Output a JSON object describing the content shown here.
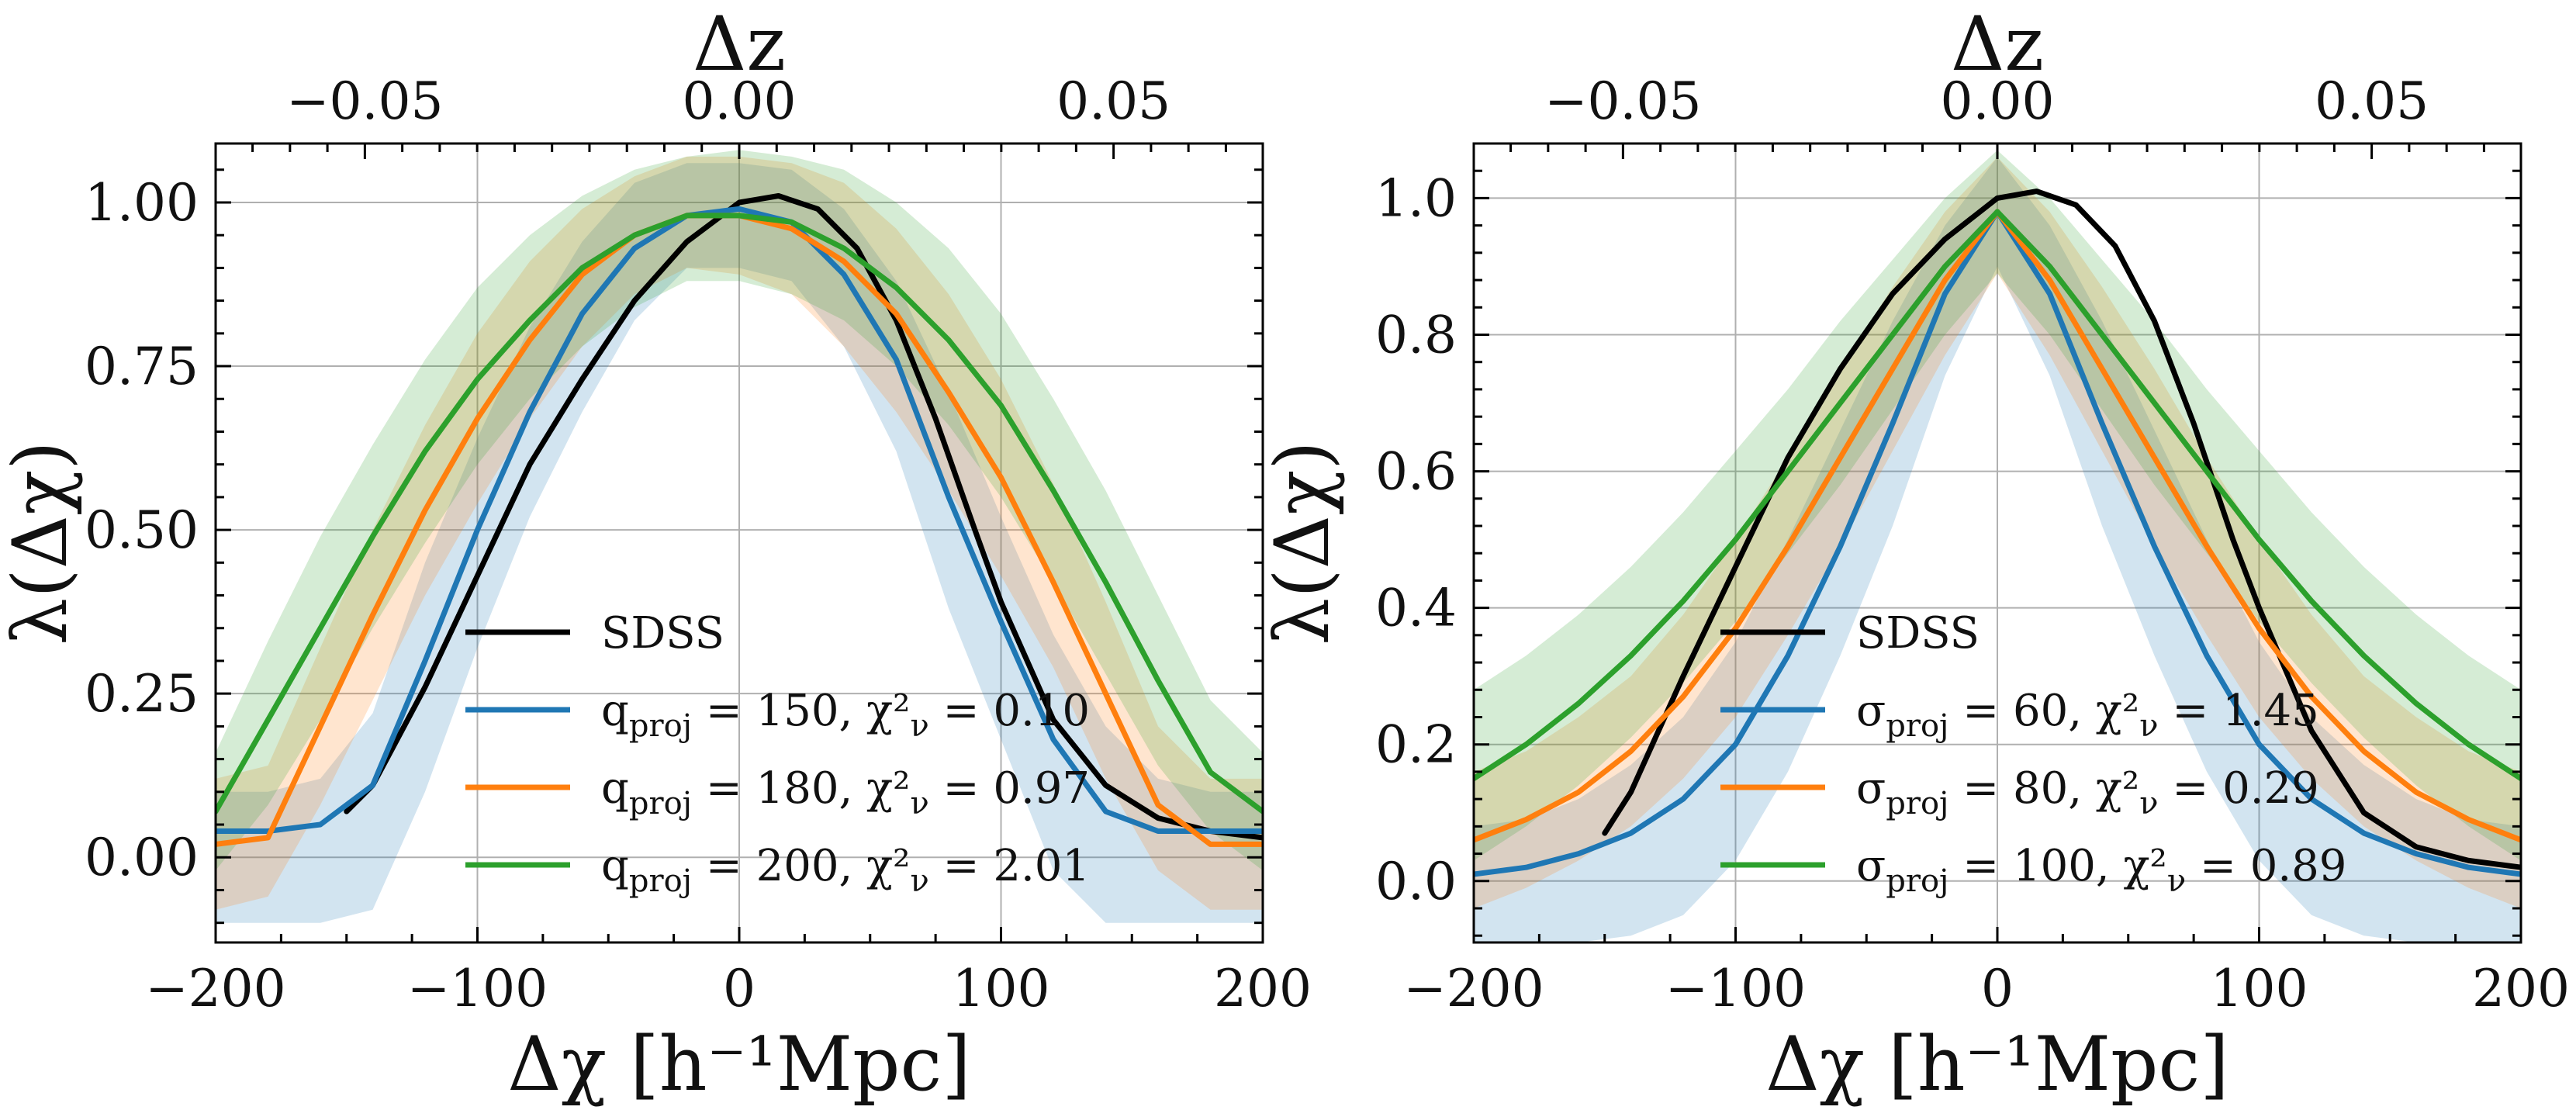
{
  "chart_data": [
    {
      "type": "line",
      "panel": "left",
      "xlabel": "Δχ [h⁻¹Mpc]",
      "ylabel": "λ(Δχ)",
      "top_xlabel": "Δz",
      "xlim": [
        -200,
        200
      ],
      "ylim": [
        -0.13,
        1.09
      ],
      "xticks": [
        -200,
        -100,
        0,
        100,
        200
      ],
      "xtick_labels": [
        "−200",
        "−100",
        "0",
        "100",
        "200"
      ],
      "yticks": [
        0.0,
        0.25,
        0.5,
        0.75,
        1.0
      ],
      "ytick_labels": [
        "0.00",
        "0.25",
        "0.50",
        "0.75",
        "1.00"
      ],
      "top_ticks_x": [
        -143,
        0,
        143
      ],
      "top_tick_labels": [
        "−0.05",
        "0.00",
        "0.05"
      ],
      "grid": true,
      "legend_position": "lower-center",
      "x": [
        -200,
        -180,
        -160,
        -140,
        -120,
        -100,
        -80,
        -60,
        -40,
        -20,
        0,
        20,
        40,
        60,
        80,
        100,
        120,
        140,
        160,
        180,
        200
      ],
      "series": [
        {
          "name": "SDSS",
          "legend_label": "SDSS",
          "color": "#000000",
          "x": [
            -150,
            -140,
            -120,
            -100,
            -80,
            -60,
            -40,
            -20,
            0,
            15,
            30,
            45,
            60,
            75,
            90,
            100,
            120,
            140,
            160,
            180,
            200
          ],
          "values": [
            0.07,
            0.11,
            0.26,
            0.43,
            0.6,
            0.73,
            0.85,
            0.94,
            1.0,
            1.01,
            0.99,
            0.93,
            0.82,
            0.67,
            0.5,
            0.39,
            0.21,
            0.11,
            0.06,
            0.04,
            0.03
          ]
        },
        {
          "name": "q_proj=150",
          "legend_label": "q_proj = 150, χ²_ν = 0.10",
          "color": "#1f77b4",
          "values": [
            0.04,
            0.04,
            0.05,
            0.11,
            0.3,
            0.5,
            0.68,
            0.83,
            0.93,
            0.98,
            0.99,
            0.97,
            0.89,
            0.76,
            0.55,
            0.36,
            0.18,
            0.07,
            0.04,
            0.04,
            0.04
          ],
          "band_lower": [
            -0.1,
            -0.1,
            -0.1,
            -0.08,
            0.1,
            0.32,
            0.52,
            0.68,
            0.82,
            0.9,
            0.9,
            0.88,
            0.78,
            0.62,
            0.38,
            0.18,
            -0.02,
            -0.1,
            -0.1,
            -0.1,
            -0.1
          ],
          "band_upper": [
            0.1,
            0.1,
            0.12,
            0.22,
            0.45,
            0.64,
            0.81,
            0.94,
            1.03,
            1.06,
            1.06,
            1.05,
            0.99,
            0.88,
            0.71,
            0.52,
            0.34,
            0.2,
            0.12,
            0.1,
            0.1
          ]
        },
        {
          "name": "q_proj=180",
          "legend_label": "q_proj = 180, χ²_ν = 0.97",
          "color": "#ff7f0e",
          "values": [
            0.02,
            0.03,
            0.2,
            0.37,
            0.53,
            0.67,
            0.79,
            0.89,
            0.95,
            0.98,
            0.98,
            0.96,
            0.91,
            0.83,
            0.71,
            0.58,
            0.42,
            0.25,
            0.08,
            0.02,
            0.02
          ],
          "band_lower": [
            -0.08,
            -0.06,
            0.08,
            0.24,
            0.4,
            0.54,
            0.67,
            0.78,
            0.86,
            0.9,
            0.89,
            0.86,
            0.78,
            0.68,
            0.56,
            0.43,
            0.29,
            0.12,
            -0.02,
            -0.08,
            -0.08
          ],
          "band_upper": [
            0.12,
            0.14,
            0.32,
            0.5,
            0.66,
            0.8,
            0.91,
            0.99,
            1.04,
            1.07,
            1.07,
            1.06,
            1.03,
            0.96,
            0.86,
            0.73,
            0.57,
            0.39,
            0.2,
            0.12,
            0.12
          ]
        },
        {
          "name": "q_proj=200",
          "legend_label": "q_proj = 200, χ²_ν = 2.01",
          "color": "#2ca02c",
          "values": [
            0.07,
            0.21,
            0.35,
            0.49,
            0.62,
            0.73,
            0.82,
            0.9,
            0.95,
            0.98,
            0.98,
            0.97,
            0.93,
            0.87,
            0.79,
            0.69,
            0.56,
            0.42,
            0.27,
            0.13,
            0.07
          ],
          "band_lower": [
            -0.02,
            0.08,
            0.21,
            0.35,
            0.48,
            0.6,
            0.7,
            0.78,
            0.84,
            0.88,
            0.88,
            0.86,
            0.82,
            0.75,
            0.66,
            0.55,
            0.42,
            0.28,
            0.14,
            0.04,
            -0.02
          ],
          "band_upper": [
            0.16,
            0.33,
            0.49,
            0.63,
            0.76,
            0.87,
            0.95,
            1.01,
            1.05,
            1.07,
            1.08,
            1.07,
            1.05,
            1.0,
            0.93,
            0.83,
            0.7,
            0.56,
            0.4,
            0.24,
            0.16
          ]
        }
      ]
    },
    {
      "type": "line",
      "panel": "right",
      "xlabel": "Δχ [h⁻¹Mpc]",
      "ylabel": "λ(Δχ)",
      "top_xlabel": "Δz",
      "xlim": [
        -200,
        200
      ],
      "ylim": [
        -0.09,
        1.08
      ],
      "xticks": [
        -200,
        -100,
        0,
        100,
        200
      ],
      "xtick_labels": [
        "−200",
        "−100",
        "0",
        "100",
        "200"
      ],
      "yticks": [
        0.0,
        0.2,
        0.4,
        0.6,
        0.8,
        1.0
      ],
      "ytick_labels": [
        "0.0",
        "0.2",
        "0.4",
        "0.6",
        "0.8",
        "1.0"
      ],
      "top_ticks_x": [
        -143,
        0,
        143
      ],
      "top_tick_labels": [
        "−0.05",
        "0.00",
        "0.05"
      ],
      "grid": true,
      "legend_position": "lower-center",
      "x": [
        -200,
        -180,
        -160,
        -140,
        -120,
        -100,
        -80,
        -60,
        -40,
        -20,
        0,
        20,
        40,
        60,
        80,
        100,
        120,
        140,
        160,
        180,
        200
      ],
      "series": [
        {
          "name": "SDSS",
          "legend_label": "SDSS",
          "color": "#000000",
          "x": [
            -150,
            -140,
            -120,
            -100,
            -80,
            -60,
            -40,
            -20,
            0,
            15,
            30,
            45,
            60,
            75,
            90,
            100,
            120,
            140,
            160,
            180,
            200
          ],
          "values": [
            0.07,
            0.13,
            0.3,
            0.46,
            0.62,
            0.75,
            0.86,
            0.94,
            1.0,
            1.01,
            0.99,
            0.93,
            0.82,
            0.67,
            0.5,
            0.4,
            0.22,
            0.1,
            0.05,
            0.03,
            0.02
          ]
        },
        {
          "name": "sigma_proj=60",
          "legend_label": "σ_proj = 60, χ²_ν = 1.45",
          "color": "#1f77b4",
          "values": [
            0.01,
            0.02,
            0.04,
            0.07,
            0.12,
            0.2,
            0.33,
            0.49,
            0.67,
            0.86,
            0.98,
            0.86,
            0.67,
            0.49,
            0.33,
            0.2,
            0.12,
            0.07,
            0.04,
            0.02,
            0.01
          ],
          "band_lower": [
            -0.09,
            -0.09,
            -0.09,
            -0.08,
            -0.05,
            0.03,
            0.16,
            0.33,
            0.52,
            0.74,
            0.9,
            0.74,
            0.52,
            0.33,
            0.16,
            0.03,
            -0.05,
            -0.08,
            -0.09,
            -0.09,
            -0.09
          ],
          "band_upper": [
            0.08,
            0.09,
            0.12,
            0.17,
            0.24,
            0.35,
            0.5,
            0.66,
            0.82,
            0.96,
            1.06,
            0.96,
            0.82,
            0.66,
            0.5,
            0.35,
            0.24,
            0.17,
            0.12,
            0.09,
            0.08
          ]
        },
        {
          "name": "sigma_proj=80",
          "legend_label": "σ_proj = 80, χ²_ν = 0.29",
          "color": "#ff7f0e",
          "values": [
            0.06,
            0.09,
            0.13,
            0.19,
            0.27,
            0.37,
            0.49,
            0.62,
            0.75,
            0.88,
            0.98,
            0.88,
            0.75,
            0.62,
            0.49,
            0.37,
            0.27,
            0.19,
            0.13,
            0.09,
            0.06
          ],
          "band_lower": [
            -0.04,
            -0.01,
            0.03,
            0.08,
            0.15,
            0.24,
            0.36,
            0.49,
            0.63,
            0.77,
            0.89,
            0.77,
            0.63,
            0.49,
            0.36,
            0.24,
            0.15,
            0.08,
            0.03,
            -0.01,
            -0.04
          ],
          "band_upper": [
            0.16,
            0.19,
            0.24,
            0.3,
            0.39,
            0.5,
            0.62,
            0.75,
            0.87,
            0.98,
            1.06,
            0.98,
            0.87,
            0.75,
            0.62,
            0.5,
            0.39,
            0.3,
            0.24,
            0.19,
            0.16
          ]
        },
        {
          "name": "sigma_proj=100",
          "legend_label": "σ_proj = 100, χ²_ν = 0.89",
          "color": "#2ca02c",
          "values": [
            0.15,
            0.2,
            0.26,
            0.33,
            0.41,
            0.5,
            0.6,
            0.7,
            0.8,
            0.9,
            0.98,
            0.9,
            0.8,
            0.7,
            0.6,
            0.5,
            0.41,
            0.33,
            0.26,
            0.2,
            0.15
          ],
          "band_lower": [
            0.03,
            0.08,
            0.14,
            0.21,
            0.29,
            0.38,
            0.48,
            0.58,
            0.69,
            0.8,
            0.89,
            0.8,
            0.69,
            0.58,
            0.48,
            0.38,
            0.29,
            0.21,
            0.14,
            0.08,
            0.03
          ],
          "band_upper": [
            0.28,
            0.33,
            0.39,
            0.46,
            0.54,
            0.63,
            0.72,
            0.82,
            0.91,
            1.0,
            1.07,
            1.0,
            0.91,
            0.82,
            0.72,
            0.63,
            0.54,
            0.46,
            0.39,
            0.33,
            0.28
          ]
        }
      ]
    }
  ]
}
